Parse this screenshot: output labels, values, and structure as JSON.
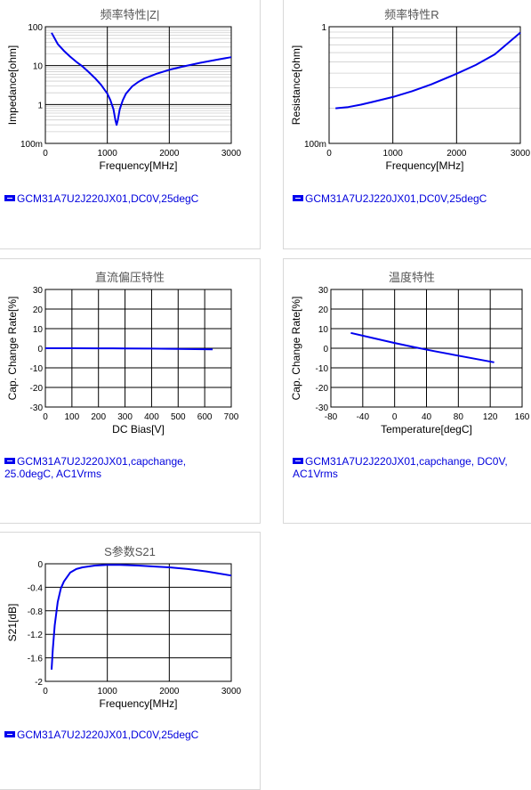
{
  "chart_data": [
    {
      "type": "line",
      "title": "频率特性|Z|",
      "xlabel": "Frequency[MHz]",
      "ylabel": "Impedance[ohm]",
      "xlim": [
        0,
        3000
      ],
      "ylim": [
        0.1,
        100
      ],
      "yscale": "log",
      "x_ticks": [
        "0",
        "1000",
        "2000",
        "3000"
      ],
      "y_ticks": [
        "100m",
        "1",
        "10",
        "100"
      ],
      "legend": "GCM31A7U2J220JX01,DC0V,25degC",
      "series": [
        {
          "x": [
            100,
            200,
            300,
            400,
            500,
            600,
            700,
            800,
            900,
            1000,
            1050,
            1100,
            1130,
            1150,
            1170,
            1200,
            1250,
            1300,
            1400,
            1500,
            1600,
            1800,
            2000,
            2200,
            2500,
            2800,
            3000
          ],
          "y": [
            70,
            36,
            24,
            17,
            12.5,
            9.5,
            6.8,
            4.8,
            3.2,
            1.9,
            1.3,
            0.75,
            0.4,
            0.3,
            0.4,
            0.75,
            1.3,
            1.9,
            2.9,
            3.8,
            4.7,
            6.2,
            7.8,
            9.3,
            11.8,
            14.5,
            16.5
          ]
        }
      ]
    },
    {
      "type": "line",
      "title": "频率特性R",
      "xlabel": "Frequency[MHz]",
      "ylabel": "Resistance[ohm]",
      "xlim": [
        0,
        3000
      ],
      "ylim": [
        0.1,
        1
      ],
      "yscale": "log",
      "x_ticks": [
        "0",
        "1000",
        "2000",
        "3000"
      ],
      "y_ticks": [
        "100m",
        "1"
      ],
      "legend": "GCM31A7U2J220JX01,DC0V,25degC",
      "series": [
        {
          "x": [
            100,
            300,
            500,
            700,
            1000,
            1300,
            1600,
            2000,
            2300,
            2600,
            3000
          ],
          "y": [
            0.2,
            0.205,
            0.215,
            0.228,
            0.25,
            0.28,
            0.32,
            0.395,
            0.47,
            0.58,
            0.89
          ]
        }
      ]
    },
    {
      "type": "line",
      "title": "直流偏压特性",
      "xlabel": "DC Bias[V]",
      "ylabel": "Cap. Change Rate[%]",
      "xlim": [
        0,
        700
      ],
      "ylim": [
        -30,
        30
      ],
      "x_ticks": [
        "0",
        "100",
        "200",
        "300",
        "400",
        "500",
        "600",
        "700"
      ],
      "y_ticks": [
        "-30",
        "-20",
        "-10",
        "0",
        "10",
        "20",
        "30"
      ],
      "legend": "GCM31A7U2J220JX01,capchange, 25.0degC, AC1Vrms",
      "series": [
        {
          "x": [
            0,
            100,
            200,
            300,
            400,
            500,
            630
          ],
          "y": [
            0,
            0,
            -0.05,
            -0.1,
            -0.2,
            -0.35,
            -0.6
          ]
        }
      ]
    },
    {
      "type": "line",
      "title": "温度特性",
      "xlabel": "Temperature[degC]",
      "ylabel": "Cap. Change Rate[%]",
      "xlim": [
        -80,
        160
      ],
      "ylim": [
        -30,
        30
      ],
      "x_ticks": [
        "-80",
        "-40",
        "0",
        "40",
        "80",
        "120",
        "160"
      ],
      "y_ticks": [
        "-30",
        "-20",
        "-10",
        "0",
        "10",
        "20",
        "30"
      ],
      "legend": "GCM31A7U2J220JX01,capchange, DC0V, AC1Vrms",
      "series": [
        {
          "x": [
            -55,
            -25,
            0,
            25,
            50,
            85,
            125
          ],
          "y": [
            7.8,
            5,
            2.7,
            0.5,
            -1.5,
            -4.2,
            -7.2
          ]
        }
      ]
    },
    {
      "type": "line",
      "title": "S参数S21",
      "xlabel": "Frequency[MHz]",
      "ylabel": "S21[dB]",
      "xlim": [
        0,
        3000
      ],
      "ylim": [
        -2,
        0
      ],
      "x_ticks": [
        "0",
        "1000",
        "2000",
        "3000"
      ],
      "y_ticks": [
        "-2",
        "-1.6",
        "-1.2",
        "-0.8",
        "-0.4",
        "0"
      ],
      "legend": "GCM31A7U2J220JX01,DC0V,25degC",
      "series": [
        {
          "x": [
            100,
            120,
            150,
            200,
            250,
            300,
            400,
            500,
            600,
            800,
            1000,
            1200,
            1500,
            1800,
            2000,
            2300,
            2600,
            3000
          ],
          "y": [
            -1.8,
            -1.45,
            -1.05,
            -0.65,
            -0.42,
            -0.3,
            -0.15,
            -0.09,
            -0.06,
            -0.03,
            -0.02,
            -0.02,
            -0.03,
            -0.05,
            -0.06,
            -0.09,
            -0.13,
            -0.2
          ]
        }
      ]
    }
  ]
}
